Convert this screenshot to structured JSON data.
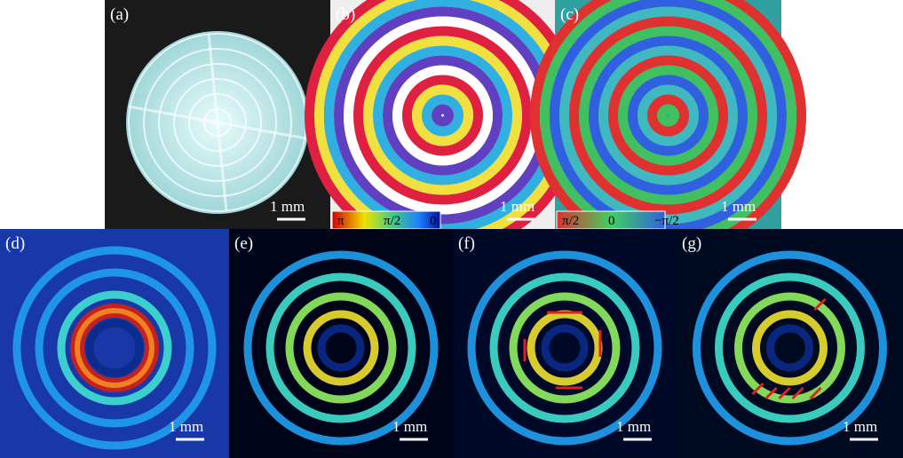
{
  "panels": [
    {
      "label": "(a)",
      "scale_bar": "1 mm"
    },
    {
      "label": "(b)",
      "scale_bar": "1 mm",
      "colorbar_labels": [
        "π",
        "π/2",
        "0"
      ]
    },
    {
      "label": "(c)",
      "scale_bar": "1 mm",
      "colorbar_labels": [
        "π/2",
        "0",
        "−π/2"
      ]
    },
    {
      "label": "(d)",
      "scale_bar": "1 mm"
    },
    {
      "label": "(e)",
      "scale_bar": "1 mm"
    },
    {
      "label": "(f)",
      "scale_bar": "1 mm"
    },
    {
      "label": "(g)",
      "scale_bar": "1 mm"
    }
  ]
}
